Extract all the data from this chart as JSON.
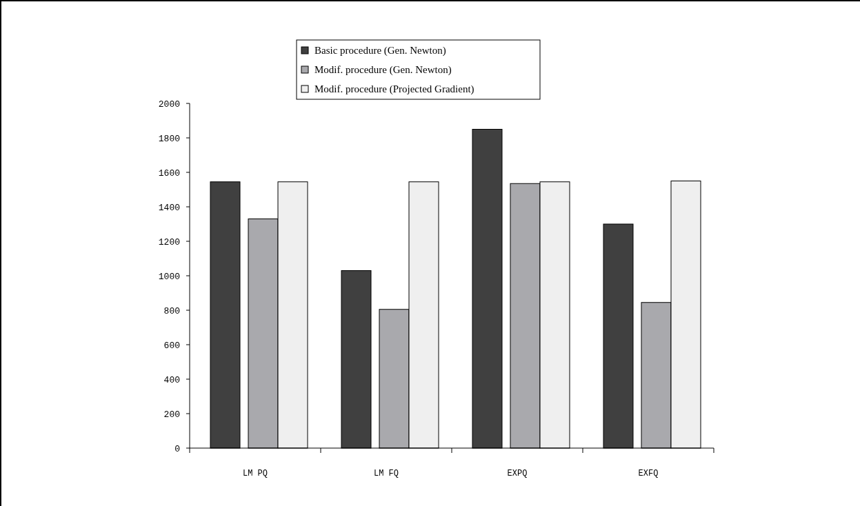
{
  "chart_data": {
    "type": "bar",
    "categories": [
      "LM PQ",
      "LM FQ",
      "EXPQ",
      "EXFQ"
    ],
    "series": [
      {
        "name": "Basic procedure (Gen. Newton)",
        "color": "#404040",
        "values": [
          1545,
          1030,
          1850,
          1300
        ]
      },
      {
        "name": "Modif. procedure (Gen. Newton)",
        "color": "#a9a9ad",
        "values": [
          1330,
          805,
          1535,
          845
        ]
      },
      {
        "name": "Modif. procedure (Projected Gradient)",
        "color": "#efefef",
        "values": [
          1545,
          1545,
          1545,
          1550
        ]
      }
    ],
    "ylim": [
      0,
      2000
    ],
    "yticks": [
      0,
      200,
      400,
      600,
      800,
      1000,
      1200,
      1400,
      1600,
      1800,
      2000
    ],
    "grid": false,
    "legend": "top"
  }
}
